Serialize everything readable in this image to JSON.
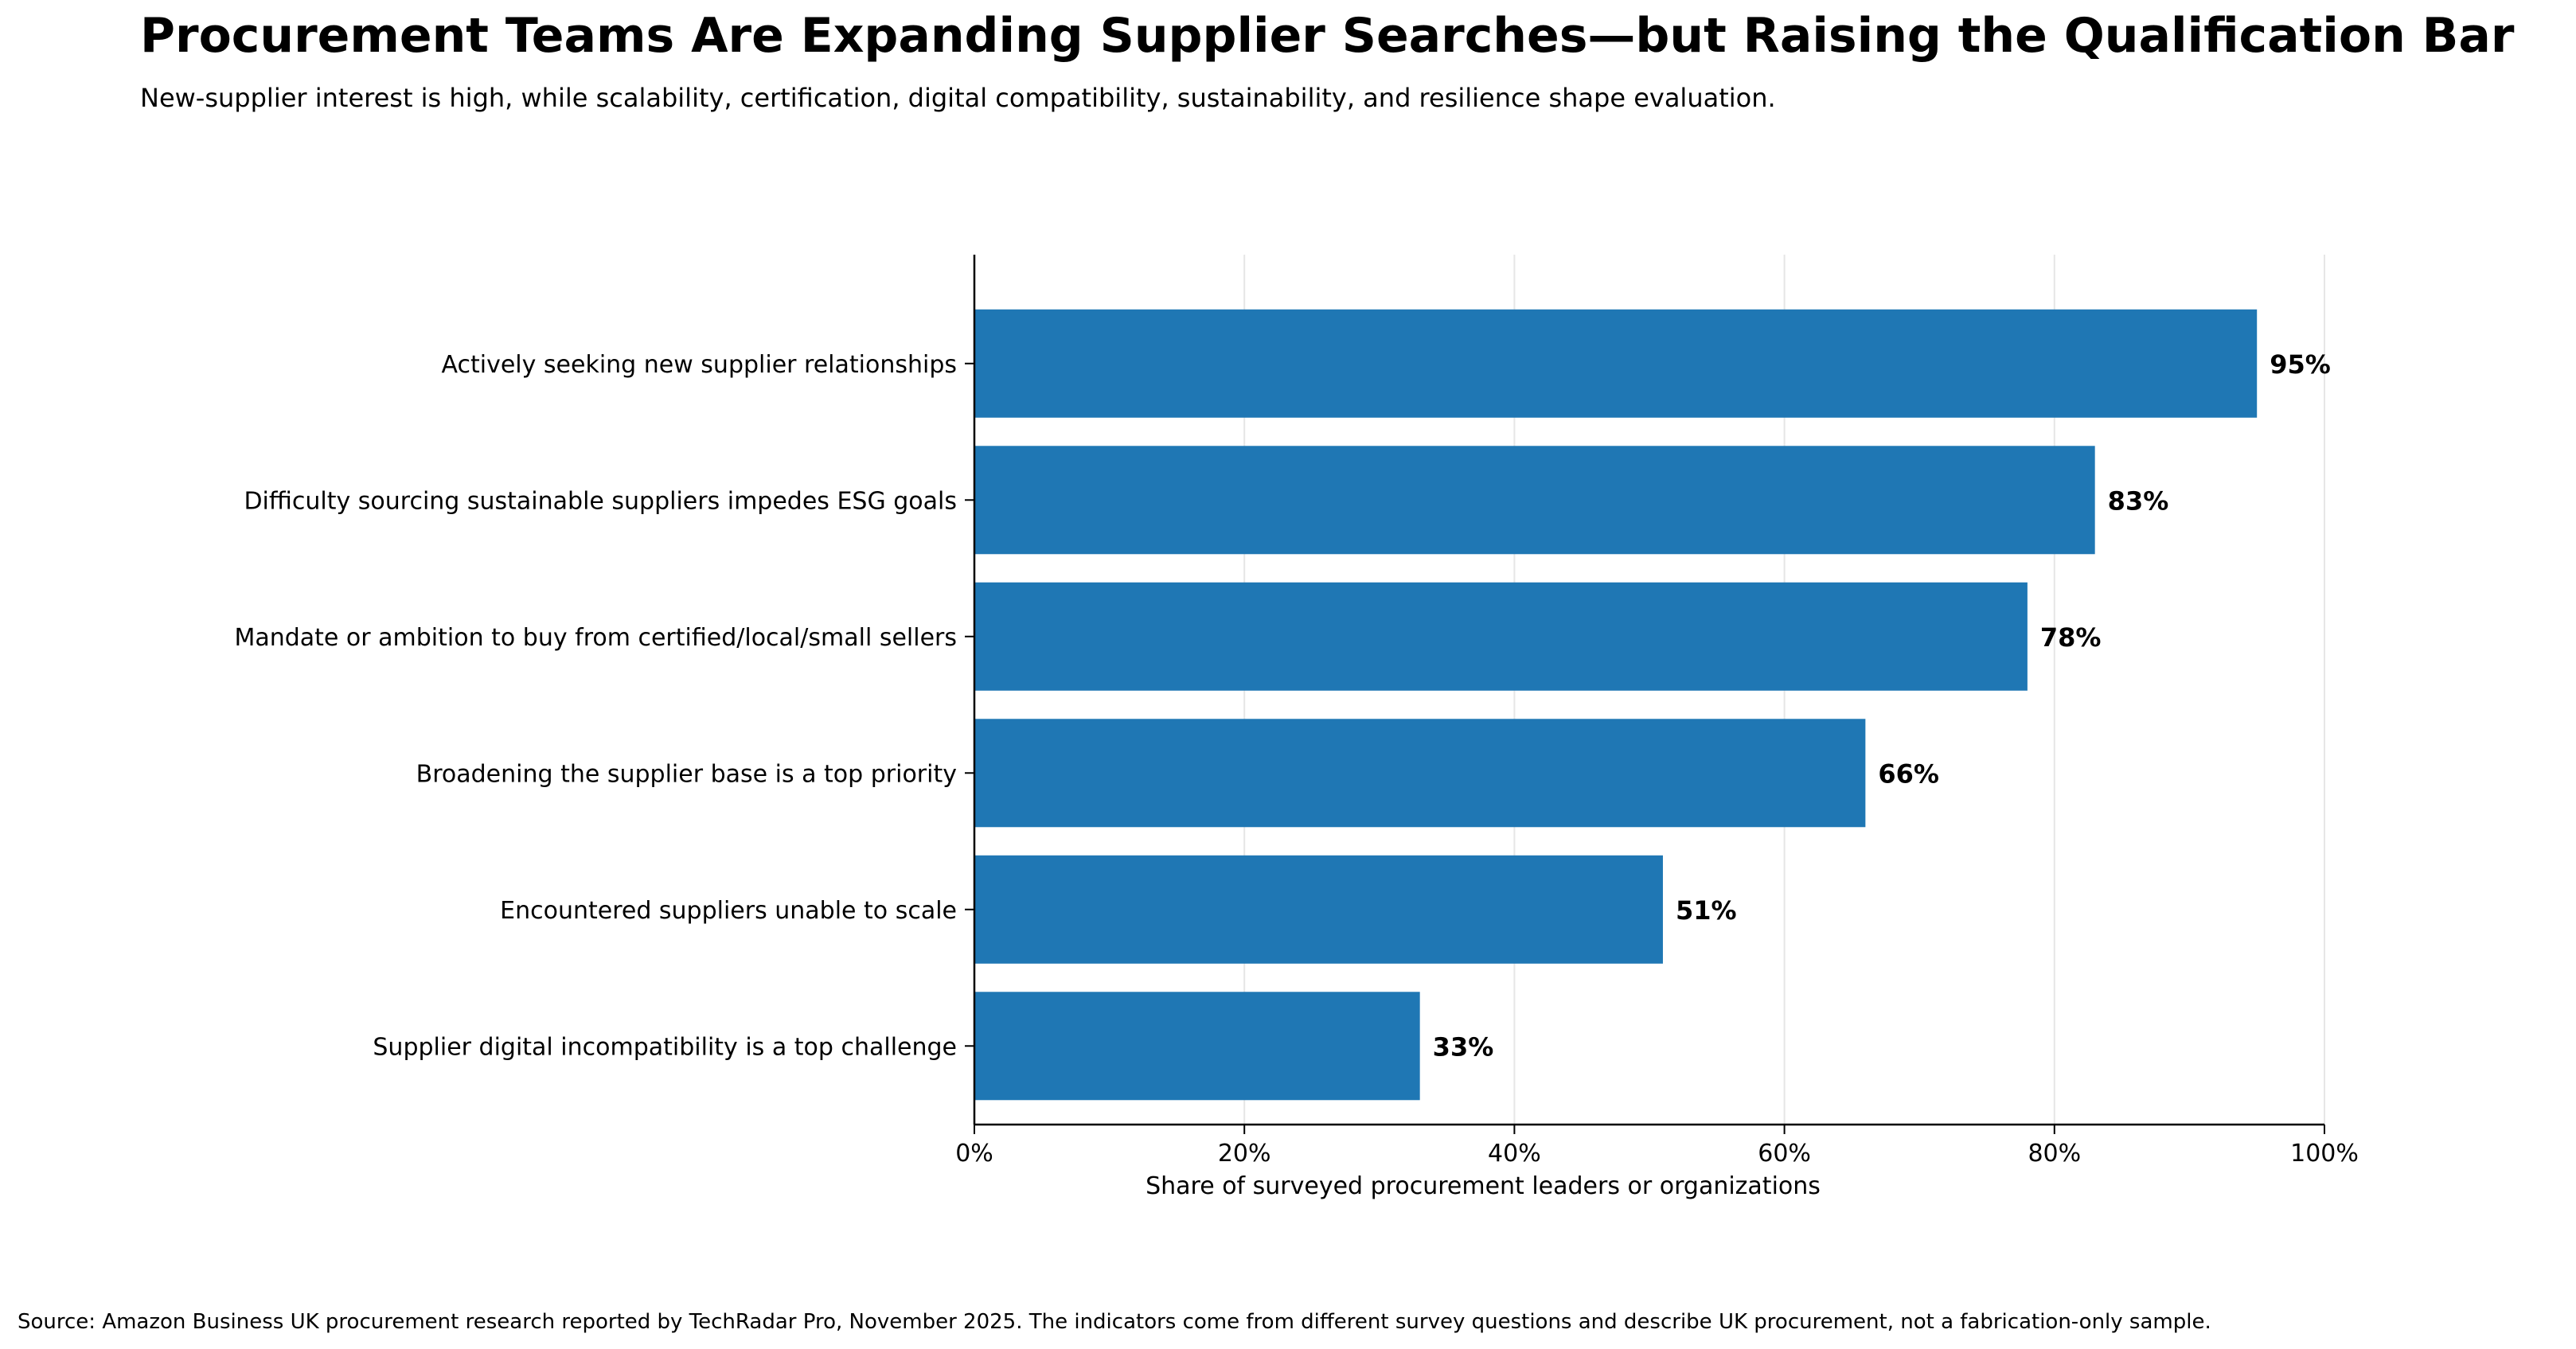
{
  "title": "Procurement Teams Are Expanding Supplier Searches—but Raising the Qualification Bar",
  "subtitle": "New-supplier interest is high, while scalability, certification, digital compatibility, sustainability, and resilience shape evaluation.",
  "source": "Source: Amazon Business UK procurement research reported by TechRadar Pro, November 2025. The indicators come from different survey questions and describe UK procurement, not a fabrication-only sample.",
  "colors": {
    "bar": "#1f77b4",
    "grid": "#e6e6e6",
    "axis": "#000000"
  },
  "chart_data": {
    "type": "bar",
    "orientation": "horizontal",
    "categories": [
      "Actively seeking new supplier relationships",
      "Difficulty sourcing sustainable suppliers impedes ESG goals",
      "Mandate or ambition to buy from certified/local/small sellers",
      "Broadening the supplier base is a top priority",
      "Encountered suppliers unable to scale",
      "Supplier digital incompatibility is a top challenge"
    ],
    "values": [
      95,
      83,
      78,
      66,
      51,
      33
    ],
    "value_labels": [
      "95%",
      "83%",
      "78%",
      "66%",
      "51%",
      "33%"
    ],
    "xlabel": "Share of surveyed procurement leaders or organizations",
    "xlim": [
      0,
      100
    ],
    "xticks": [
      0,
      20,
      40,
      60,
      80,
      100
    ],
    "xtick_labels": [
      "0%",
      "20%",
      "40%",
      "60%",
      "80%",
      "100%"
    ],
    "grid": "vertical",
    "legend": "none"
  }
}
